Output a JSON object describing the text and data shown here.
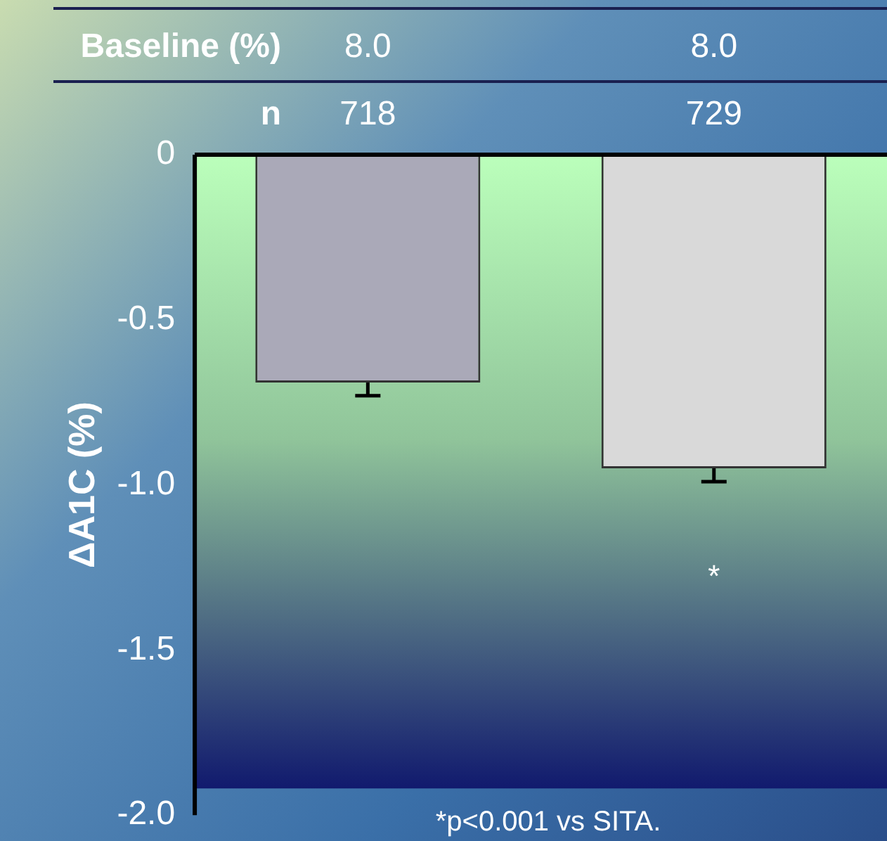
{
  "chart_data": {
    "type": "bar",
    "categories": [
      null,
      null
    ],
    "series": [
      {
        "values": [
          -0.69,
          -0.95
        ],
        "colors": [
          "#aaa9b8",
          "#d9d9d9"
        ],
        "errors": [
          0.04,
          0.04
        ]
      }
    ],
    "ylabel": "ΔA1C (%)",
    "ylim": [
      -2,
      0
    ],
    "yticks": [
      {
        "value": 0,
        "label": "0"
      },
      {
        "value": -0.5,
        "label": "-0.5"
      },
      {
        "value": -1,
        "label": "-1.0"
      },
      {
        "value": -1.5,
        "label": "-1.5"
      },
      {
        "value": -2,
        "label": "-2.0"
      }
    ],
    "annotations": [
      "Baseline (%)",
      "8.0",
      "8.0",
      "n",
      "718",
      "729",
      "*",
      "*p<0.001 vs SITA."
    ],
    "grid": false,
    "legend": false
  }
}
